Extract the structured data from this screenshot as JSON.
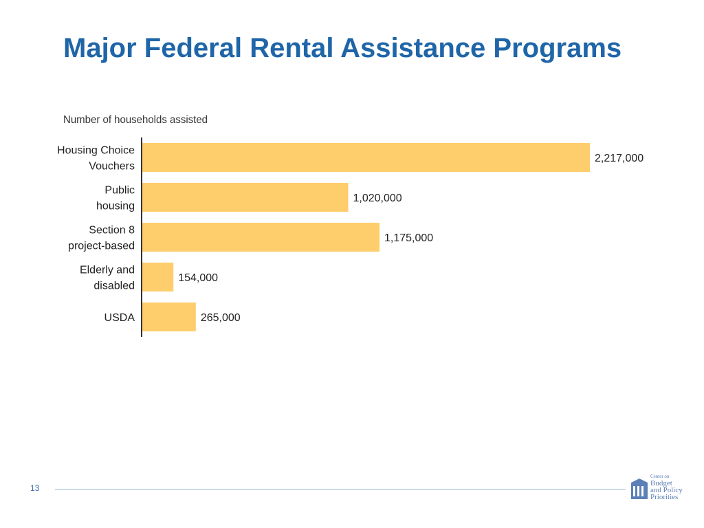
{
  "slide": {
    "title": "Major Federal Rental Assistance Programs",
    "page_number": "13"
  },
  "logo": {
    "line1": "Center",
    "line2": "on",
    "line3": "Budget",
    "line4": "and Policy",
    "line5": "Priorities"
  },
  "colors": {
    "title": "#1f65a8",
    "bar": "#fecd6c",
    "axis": "#333333",
    "footer_rule": "#9bb3d6",
    "logo": "#5c7fb5"
  },
  "chart_data": {
    "type": "bar",
    "orientation": "horizontal",
    "title": "Number of households assisted",
    "categories": [
      [
        "Housing Choice",
        "Vouchers"
      ],
      [
        "Public",
        "housing"
      ],
      [
        "Section 8",
        "project-based"
      ],
      [
        "Elderly and",
        "disabled"
      ],
      [
        "USDA"
      ]
    ],
    "values": [
      2217000,
      1020000,
      1175000,
      154000,
      265000
    ],
    "value_labels": [
      "2,217,000",
      "1,020,000",
      "1,175,000",
      "154,000",
      "265,000"
    ],
    "xlim": [
      0,
      2217000
    ],
    "grid": false,
    "legend": "none"
  }
}
